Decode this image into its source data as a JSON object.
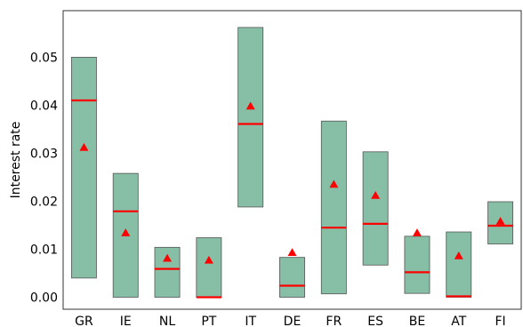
{
  "chart_data": {
    "type": "box",
    "ylabel": "Interest rate",
    "xlabel": "",
    "ylim": [
      -0.0025,
      0.0597
    ],
    "yticks": [
      0.0,
      0.01,
      0.02,
      0.03,
      0.04,
      0.05
    ],
    "ytick_labels": [
      "0.00",
      "0.01",
      "0.02",
      "0.03",
      "0.04",
      "0.05"
    ],
    "box_color": "#86bfa5",
    "median_color": "#ff0000",
    "mean_color": "#ff0000",
    "categories": [
      "GR",
      "IE",
      "NL",
      "PT",
      "IT",
      "DE",
      "FR",
      "ES",
      "BE",
      "AT",
      "FI"
    ],
    "boxes": [
      {
        "category": "GR",
        "low": 0.004,
        "high": 0.05,
        "median": 0.041,
        "mean": 0.0312
      },
      {
        "category": "IE",
        "low": 0.0,
        "high": 0.0258,
        "median": 0.0179,
        "mean": 0.0134
      },
      {
        "category": "NL",
        "low": 0.0,
        "high": 0.0104,
        "median": 0.0059,
        "mean": 0.0081
      },
      {
        "category": "PT",
        "low": 0.0,
        "high": 0.0124,
        "median": 0.0,
        "mean": 0.0077
      },
      {
        "category": "IT",
        "low": 0.0188,
        "high": 0.0562,
        "median": 0.0361,
        "mean": 0.0398
      },
      {
        "category": "DE",
        "low": 0.0,
        "high": 0.0083,
        "median": 0.0024,
        "mean": 0.0093
      },
      {
        "category": "FR",
        "low": 0.0007,
        "high": 0.0367,
        "median": 0.0145,
        "mean": 0.0235
      },
      {
        "category": "ES",
        "low": 0.0067,
        "high": 0.0303,
        "median": 0.0153,
        "mean": 0.0212
      },
      {
        "category": "BE",
        "low": 0.0008,
        "high": 0.0127,
        "median": 0.0052,
        "mean": 0.0134
      },
      {
        "category": "AT",
        "low": 0.0,
        "high": 0.0136,
        "median": 0.0002,
        "mean": 0.0086
      },
      {
        "category": "FI",
        "low": 0.0111,
        "high": 0.0199,
        "median": 0.0149,
        "mean": 0.0158
      }
    ]
  }
}
